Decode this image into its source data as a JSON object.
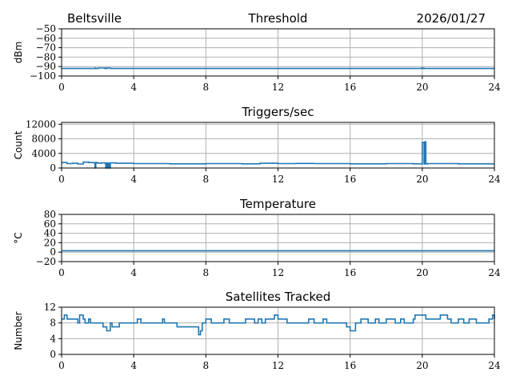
{
  "header": {
    "location": "Beltsville",
    "date": "2026/01/27"
  },
  "colors": {
    "series": "#1f77b4",
    "grid": "#b0b0b0"
  },
  "chart_data": [
    {
      "type": "line",
      "title": "Threshold",
      "ylabel": "dBm",
      "xlim": [
        0,
        24
      ],
      "ylim": [
        -100,
        -50
      ],
      "xticks": [
        0,
        4,
        8,
        12,
        16,
        20,
        24
      ],
      "xtick_labels": [
        "0",
        "4",
        "8",
        "12",
        "16",
        "20",
        "24"
      ],
      "yticks": [
        -100,
        -90,
        -80,
        -70,
        -60,
        -50
      ],
      "ytick_labels": [
        "−100",
        "−90",
        "−80",
        "−70",
        "−60",
        "−50"
      ],
      "grid": true,
      "series": [
        {
          "x": [
            0,
            1.8,
            1.85,
            1.9,
            2.0,
            2.05,
            2.4,
            2.45,
            2.5,
            2.55,
            2.7,
            2.75,
            19.9,
            19.95,
            20.0,
            20.05,
            20.1,
            24
          ],
          "y": [
            -92,
            -92,
            -91.5,
            -92,
            -92,
            -91.5,
            -92,
            -91.5,
            -92,
            -91.5,
            -92,
            -92,
            -92,
            -91.5,
            -92,
            -91.5,
            -92,
            -92
          ]
        }
      ]
    },
    {
      "type": "line",
      "title": "Triggers/sec",
      "ylabel": "Count",
      "xlim": [
        0,
        24
      ],
      "ylim": [
        0,
        12500
      ],
      "xticks": [
        0,
        4,
        8,
        12,
        16,
        20,
        24
      ],
      "xtick_labels": [
        "0",
        "4",
        "8",
        "12",
        "16",
        "20",
        "24"
      ],
      "yticks": [
        0,
        4000,
        8000,
        12000
      ],
      "ytick_labels": [
        "0",
        "4000",
        "8000",
        "12000"
      ],
      "grid": true,
      "series": [
        {
          "x": [
            0,
            0.3,
            0.6,
            0.9,
            1.2,
            1.5,
            1.8,
            1.85,
            1.9,
            2.0,
            2.2,
            2.4,
            2.45,
            2.5,
            2.55,
            2.6,
            2.65,
            2.7,
            3.0,
            4.0,
            6.0,
            8.0,
            10.0,
            11.0,
            12.0,
            13.0,
            14.0,
            16.0,
            18.0,
            19.5,
            19.95,
            20.0,
            20.1,
            20.15,
            20.2,
            20.25,
            20.3,
            22.0,
            24.0
          ],
          "y": [
            1500,
            1200,
            1300,
            1100,
            1600,
            1500,
            1400,
            0,
            1500,
            1300,
            1400,
            1300,
            0,
            1400,
            0,
            1300,
            0,
            1400,
            1300,
            1200,
            1150,
            1200,
            1150,
            1300,
            1200,
            1250,
            1200,
            1150,
            1200,
            1150,
            1100,
            7000,
            1100,
            7200,
            1200,
            1100,
            1200,
            1150,
            1150
          ]
        }
      ]
    },
    {
      "type": "line",
      "title": "Temperature",
      "ylabel": "°C",
      "xlim": [
        0,
        24
      ],
      "ylim": [
        -20,
        80
      ],
      "xticks": [
        0,
        4,
        8,
        12,
        16,
        20,
        24
      ],
      "xtick_labels": [
        "0",
        "4",
        "8",
        "12",
        "16",
        "20",
        "24"
      ],
      "yticks": [
        -20,
        0,
        20,
        40,
        60,
        80
      ],
      "ytick_labels": [
        "−20",
        "0",
        "20",
        "40",
        "60",
        "80"
      ],
      "grid": true,
      "series": [
        {
          "x": [
            0,
            24
          ],
          "y": [
            3,
            3
          ]
        }
      ]
    },
    {
      "type": "line",
      "title": "Satellites Tracked",
      "ylabel": "Number",
      "xlim": [
        0,
        24
      ],
      "ylim": [
        0,
        12
      ],
      "xticks": [
        0,
        4,
        8,
        12,
        16,
        20,
        24
      ],
      "xtick_labels": [
        "0",
        "4",
        "8",
        "12",
        "16",
        "20",
        "24"
      ],
      "yticks": [
        0,
        4,
        8,
        12
      ],
      "ytick_labels": [
        "0",
        "4",
        "8",
        "12"
      ],
      "grid": true,
      "series": [
        {
          "x": [
            0,
            0.15,
            0.3,
            0.9,
            1.0,
            1.2,
            1.3,
            1.5,
            1.6,
            2.3,
            2.5,
            2.7,
            2.8,
            3.2,
            3.3,
            4.2,
            4.4,
            4.6,
            5.0,
            5.2,
            5.6,
            5.7,
            6.0,
            6.2,
            6.4,
            7.0,
            7.6,
            7.7,
            7.8,
            8.0,
            8.3,
            9.0,
            9.3,
            10.0,
            10.2,
            10.7,
            10.9,
            11.1,
            11.3,
            11.8,
            12.0,
            12.5,
            12.7,
            13.0,
            13.3,
            13.7,
            14.0,
            14.5,
            14.7,
            15.0,
            15.3,
            15.6,
            15.8,
            16.0,
            16.3,
            16.6,
            17.0,
            17.4,
            17.6,
            18.0,
            18.5,
            18.8,
            19.0,
            19.5,
            19.6,
            20.2,
            20.4,
            21.0,
            21.4,
            21.6,
            22.0,
            22.3,
            22.6,
            23.0,
            23.3,
            23.7,
            23.9,
            24.0
          ],
          "y": [
            9,
            10,
            9,
            8,
            10,
            9,
            8,
            9,
            8,
            7,
            6,
            8,
            7,
            8,
            8,
            9,
            8,
            8,
            8,
            8,
            9,
            8,
            8,
            8,
            7,
            7,
            5,
            6,
            8,
            9,
            8,
            9,
            8,
            8,
            9,
            8,
            9,
            8,
            9,
            10,
            9,
            8,
            8,
            8,
            8,
            9,
            8,
            9,
            8,
            8,
            8,
            8,
            7,
            6,
            8,
            9,
            8,
            9,
            8,
            9,
            8,
            9,
            8,
            9,
            10,
            9,
            9,
            10,
            9,
            8,
            9,
            8,
            9,
            8,
            8,
            9,
            10,
            9
          ]
        }
      ]
    }
  ]
}
